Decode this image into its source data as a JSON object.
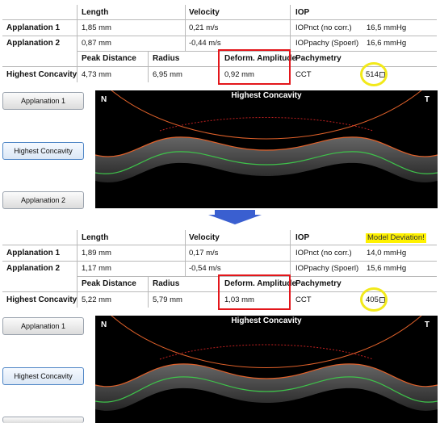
{
  "top": {
    "headers": {
      "length": "Length",
      "velocity": "Velocity",
      "iop": "IOP"
    },
    "rows": [
      {
        "label": "Applanation 1",
        "length": "1,85 mm",
        "velocity": "0,21 m/s",
        "iop_label": "IOPnct (no corr.)",
        "iop_value": "16,5 mmHg"
      },
      {
        "label": "Applanation 2",
        "length": "0,87 mm",
        "velocity": "-0,44 m/s",
        "iop_label": "IOPpachy (Spoerl)",
        "iop_value": "16,6 mmHg"
      }
    ],
    "hc_headers": {
      "peak": "Peak Distance",
      "radius": "Radius",
      "deform": "Deform. Amplitude",
      "pachy": "Pachymetry"
    },
    "hc_row": {
      "label": "Highest Concavity",
      "peak": "4,73 mm",
      "radius": "6,95 mm",
      "deform": "0,92 mm",
      "cct_label": "CCT",
      "cct_value": "514"
    },
    "buttons": {
      "appl1": "Applanation 1",
      "hc": "Highest Concavity",
      "appl2": "Applanation 2"
    },
    "image": {
      "title": "Highest Concavity",
      "left": "N",
      "right": "T"
    }
  },
  "bottom": {
    "headers": {
      "length": "Length",
      "velocity": "Velocity",
      "iop": "IOP",
      "note": "Model Deviation!"
    },
    "rows": [
      {
        "label": "Applanation 1",
        "length": "1,89 mm",
        "velocity": "0,17 m/s",
        "iop_label": "IOPnct (no corr.)",
        "iop_value": "14,0 mmHg"
      },
      {
        "label": "Applanation 2",
        "length": "1,17 mm",
        "velocity": "-0,54 m/s",
        "iop_label": "IOPpachy (Spoerl)",
        "iop_value": "15,6 mmHg"
      }
    ],
    "hc_headers": {
      "peak": "Peak Distance",
      "radius": "Radius",
      "deform": "Deform. Amplitude",
      "pachy": "Pachymetry"
    },
    "hc_row": {
      "label": "Highest Concavity",
      "peak": "5,22 mm",
      "radius": "5,79 mm",
      "deform": "1,03 mm",
      "cct_label": "CCT",
      "cct_value": "405"
    },
    "buttons": {
      "appl1": "Applanation 1",
      "hc": "Highest Concavity"
    },
    "image": {
      "title": "Highest Concavity",
      "left": "N",
      "right": "T"
    }
  },
  "colors": {
    "highlight_box": "#e3161b",
    "highlight_circle": "#f2e91a",
    "arrow": "#3a5fd0",
    "note_bg": "#fff200",
    "curve_outer": "#e0612a",
    "curve_inner": "#3ec34a"
  },
  "icons": {
    "arrow": "arrow-down-icon",
    "cct_menu": "small-menu-icon"
  }
}
